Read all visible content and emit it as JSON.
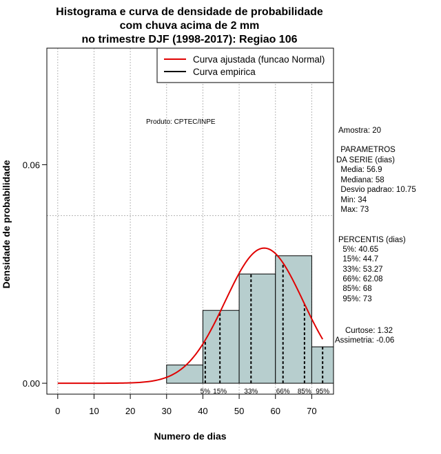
{
  "chart_data": {
    "type": "bar",
    "title_lines": [
      "Histograma e curva de densidade de probabilidade",
      "com chuva acima de 2 mm",
      "no trimestre DJF (1998-2017): Regiao 106"
    ],
    "xlabel": "Numero de dias",
    "ylabel": "Densidade de probabilidade",
    "xlim": [
      -3,
      76
    ],
    "ylim": [
      -0.003,
      0.092
    ],
    "x_ticks": [
      {
        "value": 0,
        "label": "0"
      },
      {
        "value": 10,
        "label": "10"
      },
      {
        "value": 20,
        "label": "20"
      },
      {
        "value": 30,
        "label": "30"
      },
      {
        "value": 40,
        "label": "40"
      },
      {
        "value": 50,
        "label": "50"
      },
      {
        "value": 60,
        "label": "60"
      },
      {
        "value": 70,
        "label": "70"
      }
    ],
    "y_ticks": [
      {
        "value": 0.0,
        "label": "0.00"
      },
      {
        "value": 0.06,
        "label": "0.06"
      }
    ],
    "grid": true,
    "bars": [
      {
        "x0": 30,
        "x1": 40,
        "density": 0.005
      },
      {
        "x0": 40,
        "x1": 50,
        "density": 0.02
      },
      {
        "x0": 50,
        "x1": 60,
        "density": 0.03
      },
      {
        "x0": 60,
        "x1": 70,
        "density": 0.035
      },
      {
        "x0": 70,
        "x1": 76,
        "density": 0.01
      }
    ],
    "bar_color": "#b7cece",
    "fitted_curve": {
      "name": "Curva ajustada (funcao Normal)",
      "mean": 56.9,
      "sd": 10.75,
      "x_start": 0,
      "x_end": 73,
      "color": "#e00000"
    },
    "empirical_curve": {
      "name": "Curva empirica",
      "color": "#000000"
    },
    "legend_position": "top-right",
    "percentiles": [
      {
        "value": 40.65,
        "label": "5%"
      },
      {
        "value": 44.7,
        "label": "15%"
      },
      {
        "value": 53.27,
        "label": "33%"
      },
      {
        "value": 62.08,
        "label": "66%"
      },
      {
        "value": 68,
        "label": "85%"
      },
      {
        "value": 73,
        "label": "95%"
      }
    ],
    "product_note": "Produto: CPTEC/INPE",
    "stats_lines": [
      "Amostra: 20",
      " PARAMETROS",
      "DA SERIE (dias)",
      "  Media: 56.9",
      "  Mediana: 58",
      "  Desvio padrao: 10.75",
      "  Min: 34",
      "  Max: 73",
      "PERCENTIS (dias)",
      "  5%: 40.65",
      "  15%: 44.7",
      "  33%: 53.27",
      "  66%: 62.08",
      "  85%: 68",
      "  95%: 73",
      "Curtose: 1.32",
      "Assimetria: -0.06"
    ]
  }
}
